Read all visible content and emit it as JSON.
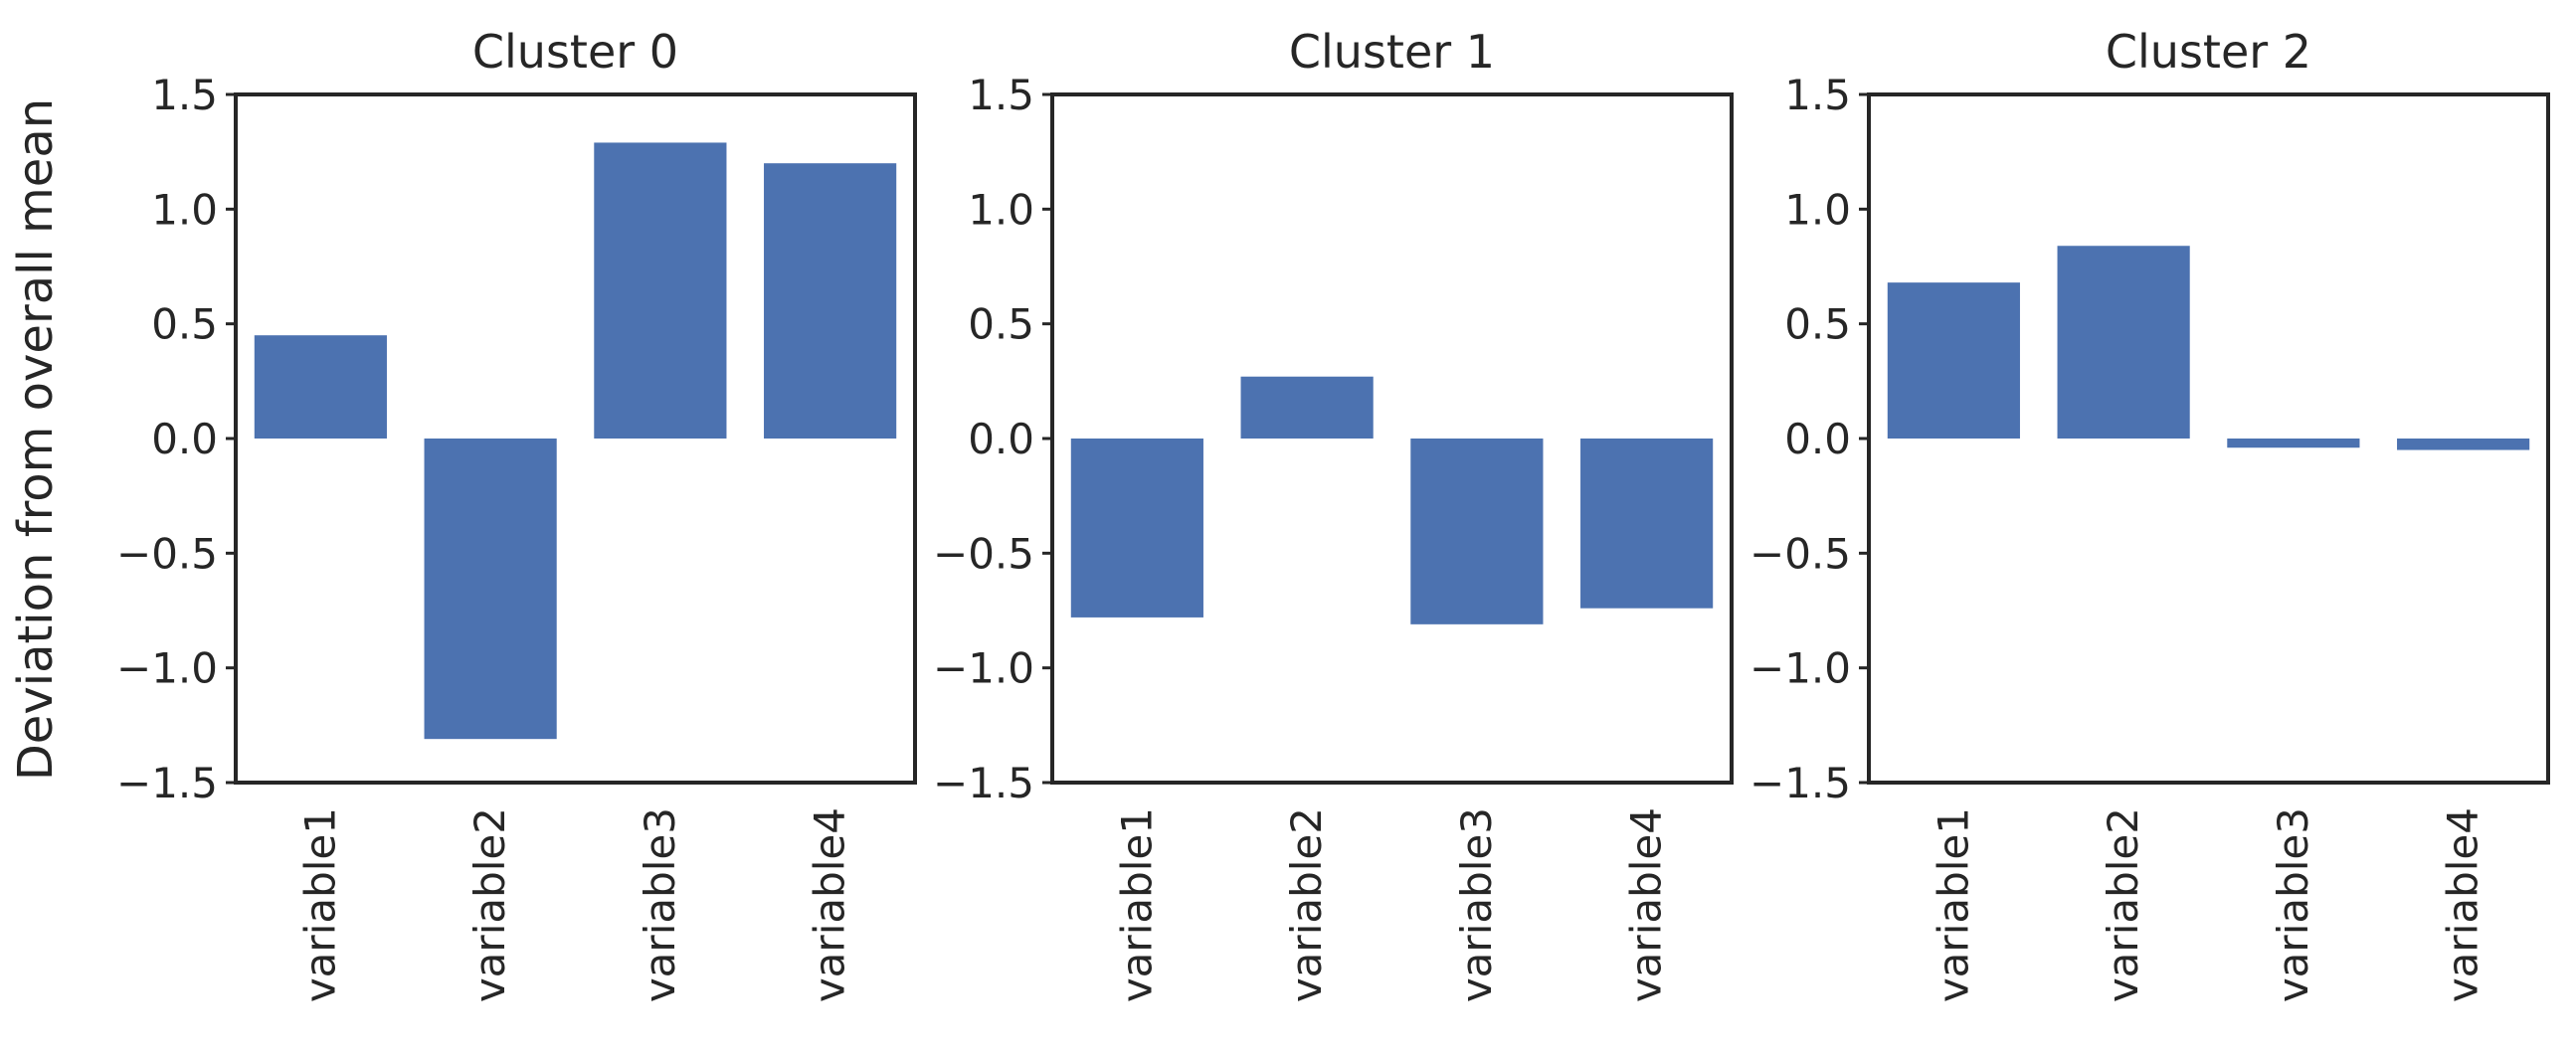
{
  "chart_data": {
    "type": "bar",
    "ylabel": "Deviation from overall mean",
    "ylim": [
      -1.5,
      1.5
    ],
    "yticks": [
      1.5,
      1.0,
      0.5,
      0.0,
      -0.5,
      -1.0,
      -1.5
    ],
    "ytick_labels": [
      "1.5",
      "1.0",
      "0.5",
      "0.0",
      "−0.5",
      "−1.0",
      "−1.5"
    ],
    "grid": false,
    "bar_color": "#4c72b0",
    "categories": [
      "variable1",
      "variable2",
      "variable3",
      "variable4"
    ],
    "panels": [
      {
        "title": "Cluster 0",
        "values": [
          0.45,
          -1.31,
          1.29,
          1.2
        ]
      },
      {
        "title": "Cluster 1",
        "values": [
          -0.78,
          0.27,
          -0.81,
          -0.74
        ]
      },
      {
        "title": "Cluster 2",
        "values": [
          0.68,
          0.84,
          -0.04,
          -0.05
        ]
      }
    ]
  }
}
